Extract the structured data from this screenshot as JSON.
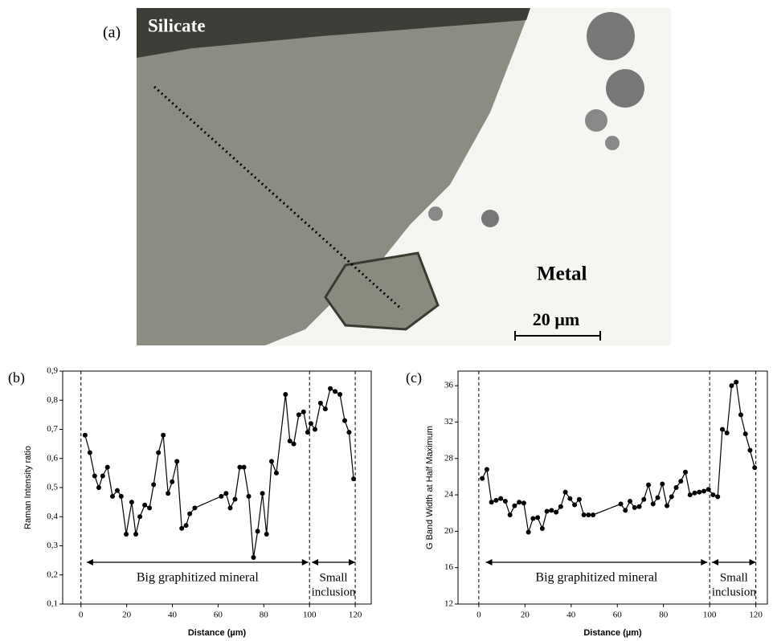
{
  "panel_a": {
    "label": "(a)",
    "silicate": "Silicate",
    "metal": "Metal",
    "scale_bar": "20 µm"
  },
  "chart_data": [
    {
      "type": "line",
      "panel_label": "(b)",
      "x_label": "Distance (µm)",
      "y_label": "Raman Intensity ratio",
      "x": [
        1.8,
        3.9,
        6.0,
        7.8,
        9.5,
        11.6,
        13.8,
        15.9,
        17.6,
        19.8,
        22.2,
        24.0,
        25.8,
        27.9,
        30.0,
        31.8,
        33.9,
        36.0,
        38.1,
        39.9,
        42.0,
        44.1,
        46.0,
        47.6,
        49.8,
        61.4,
        63.5,
        65.3,
        67.4,
        69.5,
        71.3,
        73.4,
        75.5,
        77.3,
        79.4,
        81.2,
        83.4,
        85.5,
        89.5,
        91.4,
        93.1,
        95.3,
        97.4,
        99.2,
        100.6,
        102.4,
        104.8,
        106.9,
        109.1,
        111.2,
        113.3,
        115.4,
        117.3,
        119.3
      ],
      "values": [
        0.68,
        0.62,
        0.54,
        0.5,
        0.54,
        0.57,
        0.47,
        0.49,
        0.47,
        0.34,
        0.45,
        0.34,
        0.4,
        0.44,
        0.43,
        0.51,
        0.62,
        0.68,
        0.48,
        0.52,
        0.59,
        0.36,
        0.37,
        0.41,
        0.43,
        0.47,
        0.48,
        0.43,
        0.46,
        0.57,
        0.57,
        0.47,
        0.26,
        0.35,
        0.48,
        0.34,
        0.59,
        0.55,
        0.82,
        0.66,
        0.65,
        0.75,
        0.76,
        0.69,
        0.72,
        0.7,
        0.79,
        0.77,
        0.84,
        0.83,
        0.82,
        0.73,
        0.69,
        0.53
      ],
      "color": "#000000",
      "xlim": [
        -8,
        127
      ],
      "xticks": [
        0,
        20,
        40,
        60,
        80,
        100,
        120
      ],
      "ylim": [
        0.1,
        0.9
      ],
      "yticks": [
        {
          "value": 0.1,
          "label": "0,1"
        },
        {
          "value": 0.2,
          "label": "0,2"
        },
        {
          "value": 0.3,
          "label": "0,3"
        },
        {
          "value": 0.4,
          "label": "0,4"
        },
        {
          "value": 0.5,
          "label": "0,5"
        },
        {
          "value": 0.6,
          "label": "0,6"
        },
        {
          "value": 0.7,
          "label": "0,7"
        },
        {
          "value": 0.8,
          "label": "0,8"
        },
        {
          "value": 0.9,
          "label": "0,9"
        }
      ],
      "vlines": [
        0,
        100,
        120
      ],
      "annotations": [
        {
          "text": [
            "Big graphitized mineral"
          ],
          "x": [
            2.5,
            99.5
          ]
        },
        {
          "text": [
            "Small",
            "inclusion"
          ],
          "x": [
            101,
            120
          ]
        }
      ]
    },
    {
      "type": "line",
      "panel_label": "(c)",
      "x_label": "Distance (µm)",
      "y_label": "G Band Width at Half Maximum",
      "x": [
        1.5,
        3.5,
        5.5,
        7.5,
        9.5,
        11.5,
        13.5,
        15.5,
        17.5,
        19.5,
        21.5,
        23.5,
        25.5,
        27.5,
        29.5,
        31.5,
        33.5,
        35.5,
        37.5,
        39.5,
        41.5,
        43.5,
        45.5,
        47.5,
        49.5,
        61.5,
        63.5,
        65.5,
        67.5,
        69.5,
        71.5,
        73.5,
        75.5,
        77.5,
        79.5,
        81.5,
        83.5,
        85.5,
        87.5,
        89.5,
        91.5,
        93.5,
        95.5,
        97.5,
        99.5,
        101.5,
        103.5,
        105.5,
        107.5,
        109.5,
        111.5,
        113.5,
        115.5,
        117.5,
        119.5
      ],
      "values": [
        25.8,
        26.8,
        23.2,
        23.4,
        23.6,
        23.3,
        21.8,
        22.8,
        23.2,
        23.1,
        19.9,
        21.4,
        21.5,
        20.3,
        22.2,
        22.3,
        22.1,
        22.7,
        24.3,
        23.6,
        22.9,
        23.5,
        21.8,
        21.8,
        21.8,
        23.0,
        22.3,
        23.3,
        22.6,
        22.7,
        23.5,
        25.1,
        23.0,
        23.7,
        25.2,
        22.8,
        23.8,
        24.8,
        25.5,
        26.5,
        24.0,
        24.2,
        24.3,
        24.4,
        24.6,
        24.0,
        23.8,
        31.2,
        30.8,
        36.0,
        36.4,
        32.8,
        30.7,
        28.9,
        27.0
      ],
      "color": "#000000",
      "xlim": [
        -9,
        125
      ],
      "xticks": [
        0,
        20,
        40,
        60,
        80,
        100,
        120
      ],
      "ylim": [
        12,
        37.6
      ],
      "yticks": [
        12,
        16,
        20,
        24,
        28,
        32,
        36
      ],
      "vlines": [
        0,
        100,
        120
      ],
      "annotations": [
        {
          "text": [
            "Big graphitized mineral"
          ],
          "x": [
            3,
            99
          ]
        },
        {
          "text": [
            "Small",
            "inclusion"
          ],
          "x": [
            101,
            120
          ]
        }
      ]
    }
  ]
}
